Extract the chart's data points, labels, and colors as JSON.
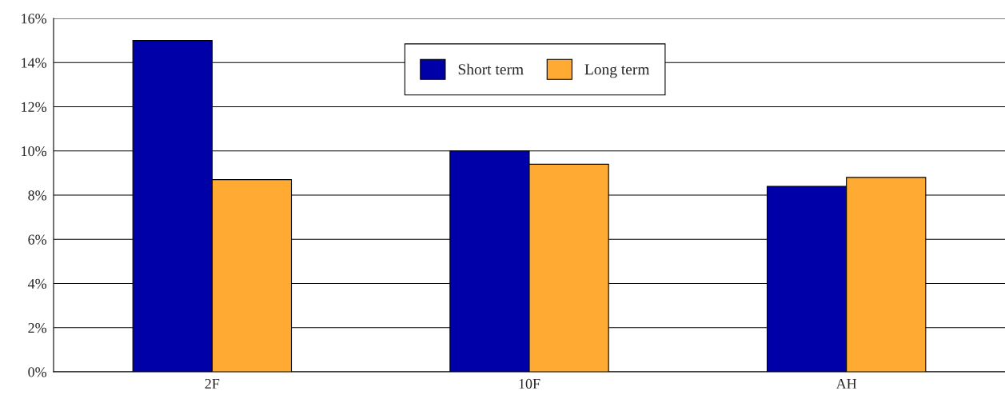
{
  "chart_data": {
    "type": "bar",
    "categories": [
      "2F",
      "10F",
      "AH"
    ],
    "series": [
      {
        "name": "Short term",
        "color": "#0000a8",
        "values": [
          15.0,
          10.0,
          8.4
        ]
      },
      {
        "name": "Long term",
        "color": "#ffaa33",
        "values": [
          8.7,
          9.4,
          8.8
        ]
      }
    ],
    "ylim": [
      0,
      16
    ],
    "yticks": [
      {
        "value": 0,
        "label": "0%"
      },
      {
        "value": 2,
        "label": "2%"
      },
      {
        "value": 4,
        "label": "4%"
      },
      {
        "value": 6,
        "label": "6%"
      },
      {
        "value": 8,
        "label": "8%"
      },
      {
        "value": 10,
        "label": "10%"
      },
      {
        "value": 12,
        "label": "12%"
      },
      {
        "value": 14,
        "label": "14%"
      },
      {
        "value": 16,
        "label": "16%"
      }
    ],
    "grid": "y",
    "legend": "top"
  }
}
